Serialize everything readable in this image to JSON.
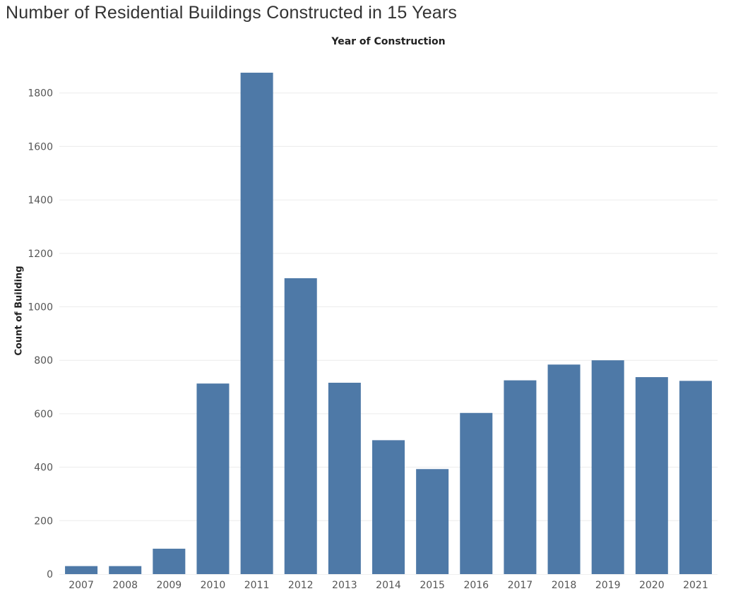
{
  "chart_data": {
    "type": "bar",
    "title": "Number of Residential Buildings Constructed in 15 Years",
    "column_header": "Year of Construction",
    "xlabel": "",
    "ylabel": "Count of Building",
    "categories": [
      "2007",
      "2008",
      "2009",
      "2010",
      "2011",
      "2012",
      "2013",
      "2014",
      "2015",
      "2016",
      "2017",
      "2018",
      "2019",
      "2020",
      "2021"
    ],
    "values": [
      30,
      30,
      95,
      713,
      1876,
      1107,
      716,
      501,
      393,
      603,
      725,
      784,
      800,
      737,
      723
    ],
    "yticks": [
      0,
      200,
      400,
      600,
      800,
      1000,
      1200,
      1400,
      1600,
      1800
    ],
    "ylim": [
      0,
      1900
    ],
    "grid": true,
    "bar_color": "#4e79a7",
    "grid_color": "#ececec"
  }
}
